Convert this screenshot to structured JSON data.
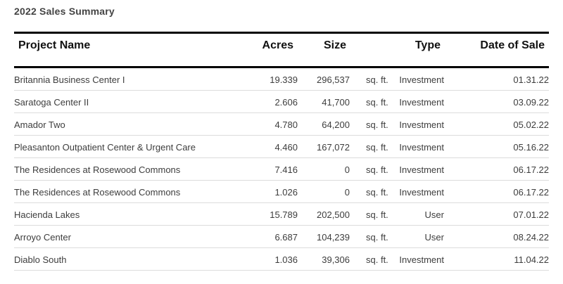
{
  "title": "2022 Sales Summary",
  "columns": {
    "name": "Project Name",
    "acres": "Acres",
    "size": "Size",
    "type": "Type",
    "date": "Date of Sale"
  },
  "rows": [
    {
      "name": "Britannia Business Center I",
      "acres": "19.339",
      "size": "296,537",
      "unit": "sq. ft.",
      "type": "Investment",
      "date": "01.31.22"
    },
    {
      "name": "Saratoga Center II",
      "acres": "2.606",
      "size": "41,700",
      "unit": "sq. ft.",
      "type": "Investment",
      "date": "03.09.22"
    },
    {
      "name": "Amador Two",
      "acres": "4.780",
      "size": "64,200",
      "unit": "sq. ft.",
      "type": "Investment",
      "date": "05.02.22"
    },
    {
      "name": "Pleasanton Outpatient Center & Urgent Care",
      "acres": "4.460",
      "size": "167,072",
      "unit": "sq. ft.",
      "type": "Investment",
      "date": "05.16.22"
    },
    {
      "name": "The Residences at Rosewood Commons",
      "acres": "7.416",
      "size": "0",
      "unit": "sq. ft.",
      "type": "Investment",
      "date": "06.17.22"
    },
    {
      "name": "The Residences at Rosewood Commons",
      "acres": "1.026",
      "size": "0",
      "unit": "sq. ft.",
      "type": "Investment",
      "date": "06.17.22"
    },
    {
      "name": "Hacienda Lakes",
      "acres": "15.789",
      "size": "202,500",
      "unit": "sq. ft.",
      "type": "User",
      "date": "07.01.22"
    },
    {
      "name": "Arroyo Center",
      "acres": "6.687",
      "size": "104,239",
      "unit": "sq. ft.",
      "type": "User",
      "date": "08.24.22"
    },
    {
      "name": "Diablo South",
      "acres": "1.036",
      "size": "39,306",
      "unit": "sq. ft.",
      "type": "Investment",
      "date": "11.04.22"
    }
  ]
}
